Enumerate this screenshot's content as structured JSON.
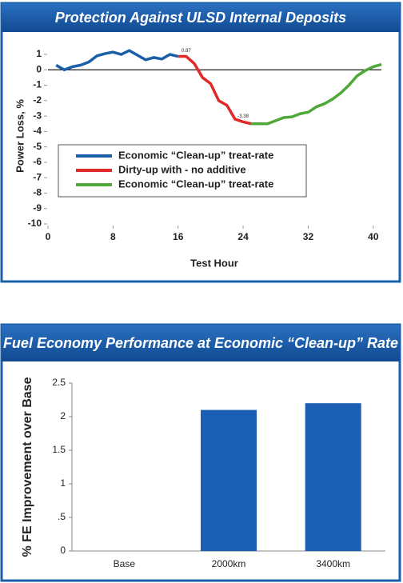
{
  "chart_data": [
    {
      "type": "line",
      "title": "Protection Against ULSD Internal Deposits",
      "x_label": "Test Hour",
      "y_label": "Power Loss, %",
      "x": [
        1,
        2,
        3,
        4,
        5,
        6,
        7,
        8,
        9,
        10,
        11,
        12,
        13,
        14,
        15,
        16,
        17,
        18,
        19,
        20,
        21,
        22,
        23,
        24,
        25,
        26,
        27,
        28,
        29,
        30,
        31,
        32,
        33,
        34,
        35,
        36,
        37,
        38,
        39,
        40,
        41
      ],
      "series": [
        {
          "name": "Economic “Clean-up” treat-rate",
          "color": "#1a5fa8",
          "values": [
            0.3,
            0,
            0.2,
            0.3,
            0.5,
            0.9,
            1.05,
            1.15,
            1.0,
            1.25,
            0.95,
            0.65,
            0.8,
            0.7,
            1.0,
            0.87,
            null,
            null,
            null,
            null,
            null,
            null,
            null,
            null,
            null,
            null,
            null,
            null,
            null,
            null,
            null,
            null,
            null,
            null,
            null,
            null,
            null,
            null,
            null,
            null,
            null
          ]
        },
        {
          "name": "Dirty-up with - no additive",
          "color": "#e02a2a",
          "values": [
            null,
            null,
            null,
            null,
            null,
            null,
            null,
            null,
            null,
            null,
            null,
            null,
            null,
            null,
            null,
            0.87,
            0.87,
            0.4,
            -0.5,
            -0.9,
            -2.0,
            -2.3,
            -3.2,
            -3.38,
            -3.5,
            null,
            null,
            null,
            null,
            null,
            null,
            null,
            null,
            null,
            null,
            null,
            null,
            null,
            null,
            null,
            null
          ]
        },
        {
          "name": "Economic “Clean-up” treat-rate",
          "color": "#4ea83a",
          "values": [
            null,
            null,
            null,
            null,
            null,
            null,
            null,
            null,
            null,
            null,
            null,
            null,
            null,
            null,
            null,
            null,
            null,
            null,
            null,
            null,
            null,
            null,
            null,
            null,
            -3.5,
            -3.5,
            -3.5,
            -3.3,
            -3.1,
            -3.05,
            -2.85,
            -2.75,
            -2.4,
            -2.2,
            -1.9,
            -1.5,
            -1.0,
            -0.4,
            -0.05,
            0.2,
            0.35
          ]
        }
      ],
      "annotations": [
        {
          "x": 17,
          "y": 0.87
        },
        {
          "x": 24,
          "y": -3.38
        }
      ],
      "xlim": [
        0,
        41
      ],
      "xticks": [
        0,
        8,
        16,
        24,
        32,
        40
      ],
      "ylim": [
        -10,
        1.5
      ],
      "yticks": [
        1,
        0,
        -1,
        -2,
        -3,
        -4,
        -5,
        -6,
        -7,
        -8,
        -9,
        -10
      ]
    },
    {
      "type": "bar",
      "title": "Fuel Economy Performance at Economic “Clean-up” Rate",
      "y_label": "% FE Improvement over Base",
      "categories": [
        "Base",
        "2000km",
        "3400km"
      ],
      "values": [
        0,
        2.1,
        2.2
      ],
      "color": "#1a5fb4",
      "ylim": [
        0,
        2.5
      ],
      "yticks": [
        0,
        {
          "value": 0.5,
          "label": ".5"
        },
        1,
        1.5,
        2,
        2.5
      ]
    }
  ]
}
